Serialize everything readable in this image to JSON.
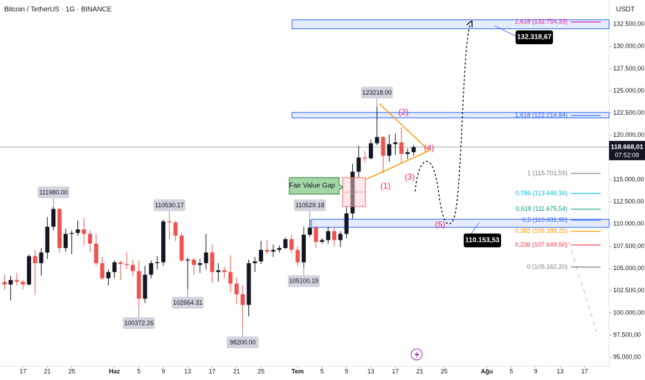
{
  "chart_data": {
    "type": "candlestick",
    "title": "Bitcoin / TetherUS · 1G · BINANCE",
    "currency": "USDT",
    "up_color": "#131722",
    "down_color": "#ef5350",
    "open": [
      103500,
      103200,
      103700,
      103500,
      103200,
      106400,
      105600,
      106800,
      109700,
      111700,
      107300,
      108900,
      109000,
      109400,
      108900,
      107800,
      105600,
      103900,
      104600,
      105700,
      105500,
      105400,
      104700,
      101600,
      104300,
      105600,
      105700,
      110300,
      110200,
      108700,
      105900,
      106000,
      105400,
      105600,
      106800,
      104600,
      104800,
      104600,
      103300,
      102100,
      100900,
      105600,
      105800,
      107100,
      106900,
      107100,
      107300,
      108300,
      107100,
      105700,
      108800,
      109600,
      108000,
      108200,
      109200,
      108200,
      108900,
      111200,
      115900,
      117500,
      117400,
      119100,
      119800,
      117700,
      119000,
      119200,
      117900,
      118100
    ],
    "high": [
      104300,
      104200,
      104500,
      103700,
      106600,
      107100,
      107300,
      110800,
      111980,
      111800,
      109500,
      109300,
      110400,
      110700,
      109300,
      108900,
      106300,
      104900,
      105900,
      105900,
      106800,
      106000,
      105900,
      105300,
      105900,
      106400,
      110500,
      110530.17,
      110400,
      109000,
      106200,
      106200,
      106100,
      108900,
      107700,
      105600,
      105200,
      106500,
      104000,
      103100,
      106000,
      106300,
      108100,
      108200,
      107700,
      107600,
      108500,
      108800,
      107500,
      109700,
      110529.18,
      109800,
      108400,
      109700,
      109700,
      109200,
      112000,
      116800,
      118800,
      118200,
      119500,
      123218,
      119900,
      120100,
      120200,
      120900,
      118500,
      118900
    ],
    "low": [
      102600,
      101400,
      103100,
      102600,
      103100,
      102000,
      104200,
      106100,
      109300,
      106800,
      106900,
      106600,
      108700,
      107600,
      106800,
      105300,
      103700,
      103100,
      103900,
      103700,
      104900,
      104100,
      100372.26,
      101100,
      103900,
      104900,
      105300,
      108300,
      108100,
      105700,
      102664.31,
      104300,
      104500,
      104900,
      103400,
      103500,
      103900,
      102300,
      101000,
      98200,
      99600,
      104600,
      105500,
      106600,
      106300,
      106800,
      107200,
      106700,
      105300,
      105100.19,
      108600,
      107300,
      107800,
      107800,
      107500,
      107400,
      108400,
      110600,
      115200,
      116900,
      117300,
      118900,
      115700,
      117000,
      117800,
      116800,
      117300,
      117700
    ],
    "close": [
      103200,
      103700,
      103500,
      103200,
      106400,
      105600,
      106800,
      109700,
      111700,
      107300,
      108900,
      109000,
      109400,
      108900,
      107800,
      105600,
      103900,
      104600,
      105700,
      105500,
      105400,
      104700,
      101600,
      104300,
      105600,
      105700,
      110300,
      110200,
      108700,
      105900,
      106000,
      105400,
      105600,
      106800,
      104600,
      104800,
      104600,
      103300,
      102100,
      100900,
      105600,
      105800,
      107100,
      106900,
      107100,
      107300,
      108300,
      107100,
      105700,
      108800,
      109600,
      108000,
      108200,
      109200,
      108200,
      108900,
      111200,
      115900,
      117500,
      117400,
      119100,
      119800,
      117700,
      119000,
      119200,
      117900,
      118100,
      118668.01
    ],
    "xlim": [
      -0.75,
      99
    ],
    "xticks": [
      {
        "value": 3,
        "label": "17"
      },
      {
        "value": 7,
        "label": "21"
      },
      {
        "value": 11,
        "label": "25"
      },
      {
        "value": 18,
        "label": "Haz"
      },
      {
        "value": 22,
        "label": "5"
      },
      {
        "value": 26,
        "label": "9"
      },
      {
        "value": 30,
        "label": "13"
      },
      {
        "value": 34,
        "label": "17"
      },
      {
        "value": 38,
        "label": "21"
      },
      {
        "value": 42,
        "label": "25"
      },
      {
        "value": 48,
        "label": "Tem"
      },
      {
        "value": 52,
        "label": "5"
      },
      {
        "value": 56,
        "label": "9"
      },
      {
        "value": 60,
        "label": "13"
      },
      {
        "value": 64,
        "label": "17"
      },
      {
        "value": 68,
        "label": "21"
      },
      {
        "value": 72,
        "label": "25"
      },
      {
        "value": 79,
        "label": "Ağu"
      },
      {
        "value": 83,
        "label": "5"
      },
      {
        "value": 87,
        "label": "9"
      },
      {
        "value": 91,
        "label": "13"
      },
      {
        "value": 95,
        "label": "17"
      }
    ],
    "ylim": [
      94000,
      135000
    ],
    "yticks": [
      {
        "value": 132500,
        "label": "132.500,00"
      },
      {
        "value": 130000,
        "label": "130.000,00"
      },
      {
        "value": 127500,
        "label": "127.500,00"
      },
      {
        "value": 125000,
        "label": "125.000,00"
      },
      {
        "value": 122500,
        "label": "122.500,00"
      },
      {
        "value": 120000,
        "label": "120.000,00"
      },
      {
        "value": 117500,
        "label": "117.500,00"
      },
      {
        "value": 115000,
        "label": "115.000,00"
      },
      {
        "value": 112500,
        "label": "112.500,00"
      },
      {
        "value": 110000,
        "label": "110.000,00"
      },
      {
        "value": 107500,
        "label": "107.500,00"
      },
      {
        "value": 105000,
        "label": "105.000,00"
      },
      {
        "value": 102500,
        "label": "102.500,00"
      },
      {
        "value": 100000,
        "label": "100.000,00"
      },
      {
        "value": 97500,
        "label": "97.500,00"
      },
      {
        "value": 95000,
        "label": "95.000,00"
      }
    ],
    "last_price": {
      "value": 118668.01,
      "label": "118.668,01"
    },
    "countdown": "07:52:09",
    "price_callouts": [
      {
        "value": 111980,
        "label": "111980.00"
      },
      {
        "value": 110530.17,
        "label": "110530.17"
      },
      {
        "value": 110529.18,
        "label": "110529.18"
      },
      {
        "value": 123218,
        "label": "123218.00"
      },
      {
        "value": 100372.26,
        "label": "100372.26"
      },
      {
        "value": 102664.31,
        "label": "102664.31"
      },
      {
        "value": 98200,
        "label": "98200.00"
      },
      {
        "value": 105100.19,
        "label": "105100.19"
      }
    ],
    "fib_levels": [
      {
        "value": 132754.33,
        "label": "2,618 (132.754,33)",
        "color": "#d81b9a"
      },
      {
        "value": 122214.84,
        "label": "1,618 (122.214,84)",
        "color": "#2962ff"
      },
      {
        "value": 115701.59,
        "label": "1 (115.701,59)",
        "color": "#787b86"
      },
      {
        "value": 113446.16,
        "label": "0,786 (113.446,16)",
        "color": "#00bcd4"
      },
      {
        "value": 111675.54,
        "label": "0,618 (111.675,54)",
        "color": "#089981"
      },
      {
        "value": 110431.9,
        "label": "0,5 (110.431,90)",
        "color": "#2962ff"
      },
      {
        "value": 109188.25,
        "label": "0,382 (109.188,25)",
        "color": "#ff9800"
      },
      {
        "value": 107649.5,
        "label": "0,236 (107.649,50)",
        "color": "#f23645"
      },
      {
        "value": 105162.2,
        "label": "0 (105.162,20)",
        "color": "#787b86"
      }
    ],
    "targets": [
      {
        "value": 132318.67,
        "label": "132.318,67"
      },
      {
        "value": 110153.53,
        "label": "110.153,53"
      }
    ],
    "fvg_label": "Fair Value Gap",
    "waves": [
      "(1)",
      "(2)",
      "(3)",
      "(4)",
      "(5)"
    ]
  }
}
